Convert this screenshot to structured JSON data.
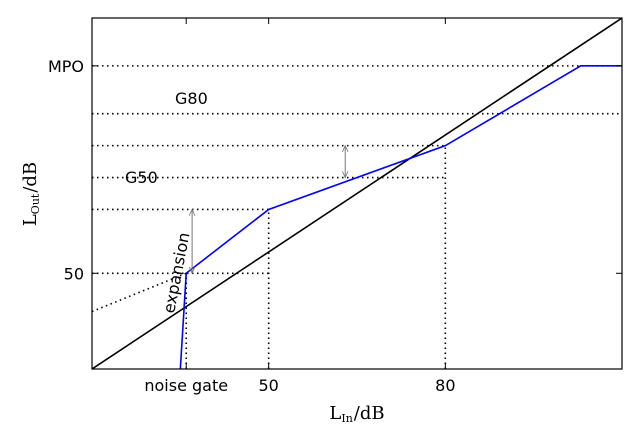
{
  "chart_data": {
    "type": "line",
    "xlim": [
      20,
      110
    ],
    "ylim": [
      20,
      130
    ],
    "xticks": [
      {
        "value": 36,
        "label": "noise gate"
      },
      {
        "value": 50,
        "label": "50"
      },
      {
        "value": 80,
        "label": "80"
      }
    ],
    "yticks": [
      {
        "value": 50,
        "label": "50"
      },
      {
        "value": 115,
        "label": "MPO"
      }
    ],
    "xlabel": {
      "main": "L",
      "sub": "In",
      "unit": "/dB"
    },
    "ylabel": {
      "main": "L",
      "sub": "Out",
      "unit": "/dB"
    },
    "series": [
      {
        "key": "identity",
        "color": "#000000",
        "style": "solid",
        "points": [
          [
            20,
            20
          ],
          [
            110,
            130
          ]
        ]
      },
      {
        "key": "io-curve",
        "color": "#0000ff",
        "style": "solid",
        "points": [
          [
            35,
            20
          ],
          [
            36,
            50
          ],
          [
            50,
            70
          ],
          [
            80,
            90
          ],
          [
            103,
            115
          ],
          [
            110,
            115
          ]
        ]
      },
      {
        "key": "linear-extrapolation",
        "color": "#000000",
        "style": "dotted",
        "points": [
          [
            20,
            38
          ],
          [
            36,
            50
          ]
        ]
      }
    ],
    "reference_lines": {
      "horizontal": [
        {
          "y": 115,
          "x0": 20,
          "x1": 110
        },
        {
          "y": 100,
          "x0": 20,
          "x1": 110
        },
        {
          "y": 90,
          "x0": 20,
          "x1": 80
        },
        {
          "y": 80,
          "x0": 20,
          "x1": 80
        },
        {
          "y": 70,
          "x0": 20,
          "x1": 50
        },
        {
          "y": 50,
          "x0": 20,
          "x1": 50
        }
      ],
      "vertical": [
        {
          "x": 36,
          "y0": 20,
          "y1": 50
        },
        {
          "x": 50,
          "y0": 20,
          "y1": 70
        },
        {
          "x": 80,
          "y0": 20,
          "y1": 90
        }
      ]
    },
    "annotations": [
      {
        "key": "g80",
        "text": "G80",
        "arrow_x": 63,
        "y_from": 80,
        "y_to": 90
      },
      {
        "key": "g50",
        "text": "G50",
        "arrow_x": 37,
        "y_from": 50,
        "y_to": 70
      },
      {
        "key": "expansion",
        "text": "expansion"
      }
    ]
  }
}
